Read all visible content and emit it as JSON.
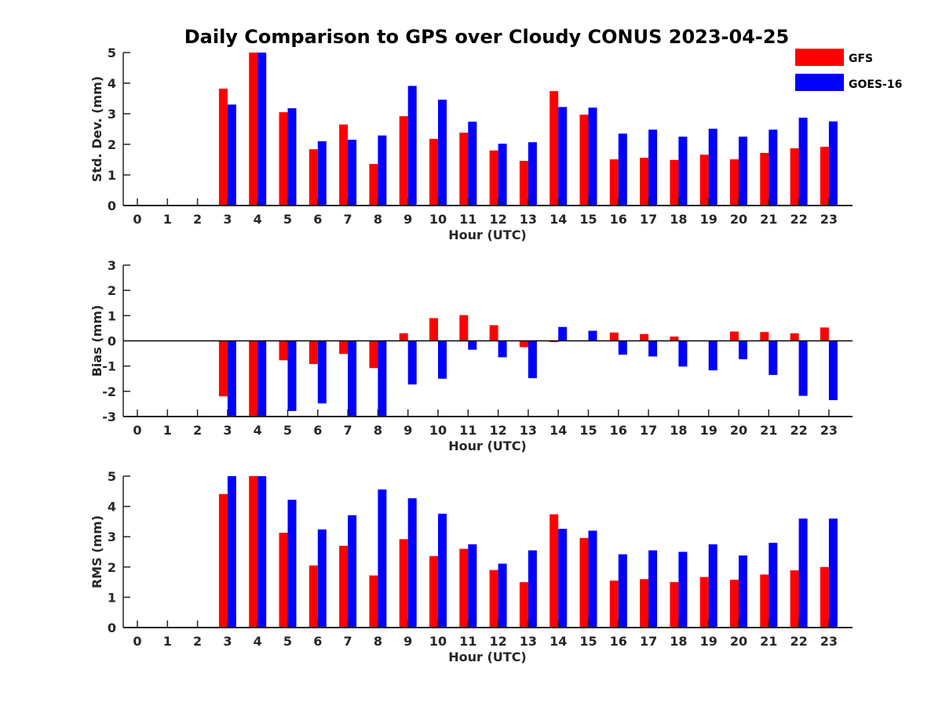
{
  "title": "Daily Comparison to GPS over Cloudy CONUS 2023-04-25",
  "legend": {
    "position": "top-right",
    "entries": [
      {
        "label": "GFS",
        "color": "#ff0000"
      },
      {
        "label": "GOES-16",
        "color": "#0000ff"
      }
    ]
  },
  "colors": {
    "gfs": "#ff0000",
    "goes16": "#0000ff",
    "axis": "#262626"
  },
  "chart_data": [
    {
      "type": "bar",
      "ylabel": "Std. Dev. (mm)",
      "xlabel": "Hour (UTC)",
      "ylim": [
        0,
        5
      ],
      "yticks": [
        0,
        1,
        2,
        3,
        4,
        5
      ],
      "categories": [
        "0",
        "1",
        "2",
        "3",
        "4",
        "5",
        "6",
        "7",
        "8",
        "9",
        "10",
        "11",
        "12",
        "13",
        "14",
        "15",
        "16",
        "17",
        "18",
        "19",
        "20",
        "21",
        "22",
        "23"
      ],
      "series": [
        {
          "name": "GFS",
          "values": [
            null,
            null,
            null,
            3.82,
            5.0,
            3.05,
            1.84,
            2.65,
            1.36,
            2.92,
            2.18,
            2.38,
            1.8,
            1.46,
            3.74,
            2.97,
            1.51,
            1.56,
            1.49,
            1.66,
            1.51,
            1.72,
            1.87,
            1.92
          ]
        },
        {
          "name": "GOES-16",
          "values": [
            null,
            null,
            null,
            3.3,
            5.0,
            3.18,
            2.1,
            2.15,
            2.29,
            3.91,
            3.46,
            2.74,
            2.02,
            2.07,
            3.22,
            3.2,
            2.35,
            2.48,
            2.25,
            2.51,
            2.25,
            2.48,
            2.87,
            2.75
          ]
        }
      ]
    },
    {
      "type": "bar",
      "ylabel": "Bias (mm)",
      "xlabel": "Hour (UTC)",
      "ylim": [
        -3,
        3
      ],
      "yticks": [
        -3,
        -2,
        -1,
        0,
        1,
        2,
        3
      ],
      "categories": [
        "0",
        "1",
        "2",
        "3",
        "4",
        "5",
        "6",
        "7",
        "8",
        "9",
        "10",
        "11",
        "12",
        "13",
        "14",
        "15",
        "16",
        "17",
        "18",
        "19",
        "20",
        "21",
        "22",
        "23"
      ],
      "series": [
        {
          "name": "GFS",
          "values": [
            null,
            null,
            null,
            -2.2,
            -3.0,
            -0.77,
            -0.92,
            -0.52,
            -1.08,
            0.3,
            0.9,
            1.02,
            0.62,
            -0.25,
            -0.05,
            0.0,
            0.33,
            0.27,
            0.17,
            0.0,
            0.37,
            0.35,
            0.3,
            0.53
          ]
        },
        {
          "name": "GOES-16",
          "values": [
            null,
            null,
            null,
            -3.0,
            -3.0,
            -2.78,
            -2.48,
            -3.0,
            -3.0,
            -1.73,
            -1.5,
            -0.35,
            -0.65,
            -1.48,
            0.55,
            0.4,
            -0.55,
            -0.62,
            -1.02,
            -1.17,
            -0.73,
            -1.35,
            -2.18,
            -2.35
          ]
        }
      ]
    },
    {
      "type": "bar",
      "ylabel": "RMS (mm)",
      "xlabel": "Hour (UTC)",
      "ylim": [
        0,
        5
      ],
      "yticks": [
        0,
        1,
        2,
        3,
        4,
        5
      ],
      "categories": [
        "0",
        "1",
        "2",
        "3",
        "4",
        "5",
        "6",
        "7",
        "8",
        "9",
        "10",
        "11",
        "12",
        "13",
        "14",
        "15",
        "16",
        "17",
        "18",
        "19",
        "20",
        "21",
        "22",
        "23"
      ],
      "series": [
        {
          "name": "GFS",
          "values": [
            null,
            null,
            null,
            4.41,
            5.0,
            3.13,
            2.05,
            2.7,
            1.72,
            2.92,
            2.36,
            2.6,
            1.9,
            1.5,
            3.74,
            2.96,
            1.55,
            1.6,
            1.5,
            1.67,
            1.58,
            1.75,
            1.89,
            2.0
          ]
        },
        {
          "name": "GOES-16",
          "values": [
            null,
            null,
            null,
            5.0,
            5.0,
            4.22,
            3.24,
            3.71,
            4.56,
            4.27,
            3.76,
            2.75,
            2.11,
            2.55,
            3.26,
            3.2,
            2.42,
            2.55,
            2.5,
            2.75,
            2.38,
            2.8,
            3.6,
            3.6
          ]
        }
      ]
    }
  ]
}
